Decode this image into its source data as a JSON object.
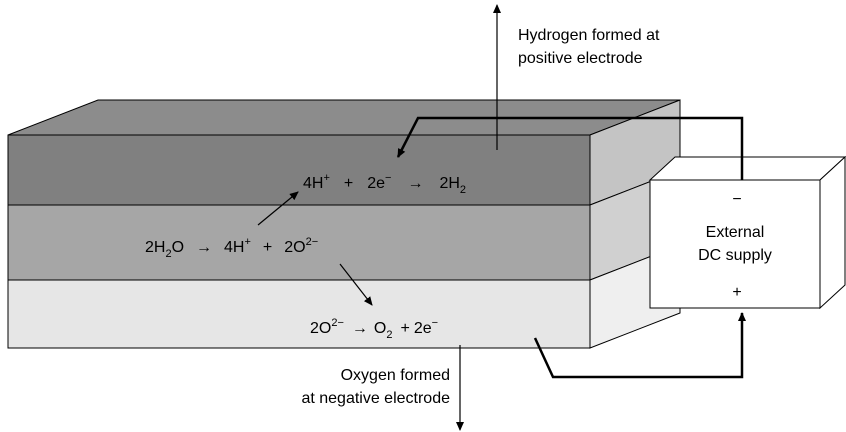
{
  "hydrogen_label": [
    "Hydrogen formed at",
    "positive electrode"
  ],
  "oxygen_label": [
    "Oxygen formed",
    "at negative electrode"
  ],
  "supply": {
    "minus": "−",
    "lines": [
      "External",
      "DC supply"
    ],
    "plus": "+"
  },
  "equations": [
    [
      {
        "text": "4H",
        "sup": "+"
      },
      {
        "text": "+"
      },
      {
        "text": "2e",
        "sup": "−"
      },
      {
        "text": "→"
      },
      {
        "text": "2H",
        "sub": "2"
      }
    ],
    [
      {
        "text": "2H",
        "sub": "2"
      },
      {
        "text": "O"
      },
      {
        "text": "→"
      },
      {
        "text": "4H",
        "sup": "+"
      },
      {
        "text": "+"
      },
      {
        "text": "2O",
        "sup": "2−"
      }
    ],
    [
      {
        "text": "2O",
        "sup": "2−"
      },
      {
        "text": "→"
      },
      {
        "text": "O",
        "sub": "2"
      },
      {
        "text": "+"
      },
      {
        "text": "2e",
        "sup": "−"
      }
    ]
  ]
}
